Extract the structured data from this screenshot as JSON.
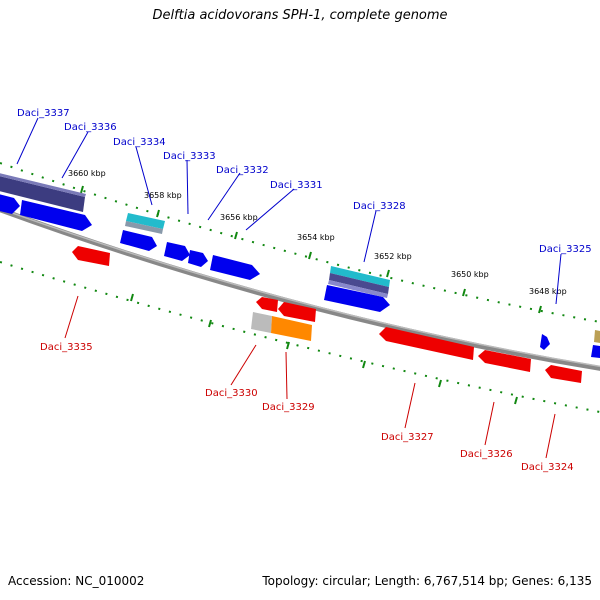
{
  "title": "Delftia acidovorans SPH-1, complete genome",
  "footer": {
    "accession": "Accession: NC_010002",
    "topology": "Topology: circular; Length: 6,767,514 bp; Genes: 6,135"
  },
  "colors": {
    "forward_gene": "#0000ee",
    "reverse_gene": "#ee0000",
    "forward_label": "#0000cc",
    "reverse_label": "#cc0000",
    "backbone": "#888888",
    "tick": "#118811",
    "dark_band": "#3c3c80",
    "cyan_band": "#22bbcc",
    "orange_band": "#ff8800",
    "gray_band": "#bbbbbb"
  },
  "ticks": [
    {
      "label": "3660 kbp"
    },
    {
      "label": "3658 kbp"
    },
    {
      "label": "3656 kbp"
    },
    {
      "label": "3654 kbp"
    },
    {
      "label": "3652 kbp"
    },
    {
      "label": "3650 kbp"
    },
    {
      "label": "3648 kbp"
    }
  ],
  "forward_gene_labels": [
    "Daci_3337",
    "Daci_3336",
    "Daci_3334",
    "Daci_3333",
    "Daci_3332",
    "Daci_3331",
    "Daci_3328",
    "Daci_3325"
  ],
  "reverse_gene_labels": [
    "Daci_3335",
    "Daci_3330",
    "Daci_3329",
    "Daci_3327",
    "Daci_3326",
    "Daci_3324"
  ]
}
